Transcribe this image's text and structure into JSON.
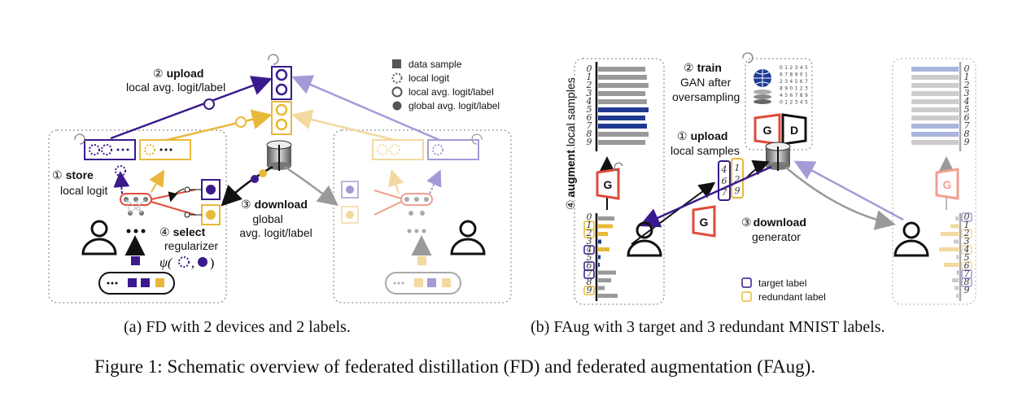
{
  "legend_left": {
    "data_sample": "data sample",
    "local_logit": "local logit",
    "local_avg": "local avg. logit/label",
    "global_avg": "global avg. logit/label"
  },
  "panel_a": {
    "upload_num": "②",
    "upload_bold": "upload",
    "upload_sub": "local avg. logit/label",
    "store_num": "①",
    "store_bold": "store",
    "store_sub": "local logit",
    "download_num": "③",
    "download_bold": "download",
    "download_sub1": "global",
    "download_sub2": "avg. logit/label",
    "select_num": "④",
    "select_bold": "select",
    "select_sub": "regularizer",
    "psi": "ψ(",
    "psi_sep": ",",
    "psi_close": ")",
    "caption": "(a)  FD with 2 devices and 2 labels."
  },
  "panel_b": {
    "train_num": "②",
    "train_bold": "train",
    "train_sub1": "GAN after",
    "train_sub2": "oversampling",
    "upload_num": "①",
    "upload_bold": "upload",
    "upload_sub": "local samples",
    "download_num": "③",
    "download_bold": "download",
    "download_sub": "generator",
    "augment_num": "④",
    "augment_bold": "augment",
    "augment_sub": "local samples",
    "g_label": "G",
    "d_label": "D",
    "legend_target": "target label",
    "legend_redundant": "redundant label",
    "digits": [
      "0",
      "1",
      "2",
      "3",
      "4",
      "5",
      "6",
      "7",
      "8",
      "9"
    ],
    "caption": "(b)  FAug with 3 target and 3 redundant MNIST labels."
  },
  "figure_caption": "Figure 1:  Schematic overview of federated distillation (FD) and federated augmentation (FAug).",
  "colors": {
    "purple": "#3a1a8c",
    "gold": "#e8b83a",
    "navy": "#1f3a93",
    "light_purple": "#a59ad8",
    "light_gold": "#f2d9a0",
    "red": "#e04a3a",
    "gray": "#9a9a9a"
  }
}
